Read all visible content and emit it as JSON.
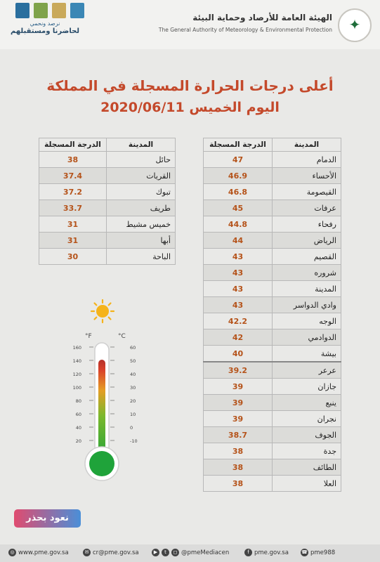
{
  "header": {
    "pme_arabic": "الهيئة العامة للأرصاد وحماية البيئة",
    "pme_english": "The General Authority of Meteorology & Environmental Protection",
    "slogan_top": "نرصد ونحمي",
    "slogan_bottom": "لحاضرنا ومستقبلهم"
  },
  "title": {
    "line1": "أعلى درجات الحرارة المسجلة في المملكة",
    "line2": "اليوم الخميس 2020/06/11"
  },
  "columns": {
    "city": "المدينة",
    "temp": "الدرجة المسجلة"
  },
  "right_table": [
    {
      "city": "الدمام",
      "temp": "47"
    },
    {
      "city": "الأحساء",
      "temp": "46.9"
    },
    {
      "city": "القيصومة",
      "temp": "46.8"
    },
    {
      "city": "عرفات",
      "temp": "45"
    },
    {
      "city": "رفحاء",
      "temp": "44.8"
    },
    {
      "city": "الرياض",
      "temp": "44"
    },
    {
      "city": "القصيم",
      "temp": "43"
    },
    {
      "city": "شروره",
      "temp": "43"
    },
    {
      "city": "المدينة",
      "temp": "43"
    },
    {
      "city": "وادي الدواسر",
      "temp": "43"
    },
    {
      "city": "الوجه",
      "temp": "42.2"
    },
    {
      "city": "الدوادمي",
      "temp": "42"
    },
    {
      "city": "بيشة",
      "temp": "40"
    },
    {
      "city": "عرعر",
      "temp": "39.2"
    },
    {
      "city": "جازان",
      "temp": "39"
    },
    {
      "city": "ينبع",
      "temp": "39"
    },
    {
      "city": "نجران",
      "temp": "39"
    },
    {
      "city": "الجوف",
      "temp": "38.7"
    },
    {
      "city": "جدة",
      "temp": "38"
    },
    {
      "city": "الطائف",
      "temp": "38"
    },
    {
      "city": "العلا",
      "temp": "38"
    }
  ],
  "left_table": [
    {
      "city": "حائل",
      "temp": "38"
    },
    {
      "city": "القريات",
      "temp": "37.4"
    },
    {
      "city": "تبوك",
      "temp": "37.2"
    },
    {
      "city": "طريف",
      "temp": "33.7"
    },
    {
      "city": "خميس مشيط",
      "temp": "31"
    },
    {
      "city": "أبها",
      "temp": "31"
    },
    {
      "city": "الباحة",
      "temp": "30"
    }
  ],
  "thermometer": {
    "unit_f": "°F",
    "unit_c": "°C",
    "f_ticks": [
      "160",
      "140",
      "120",
      "100",
      "80",
      "60",
      "40",
      "20"
    ],
    "c_ticks": [
      "60",
      "50",
      "40",
      "30",
      "20",
      "10",
      "0",
      "-10"
    ]
  },
  "campaign": "نعود بحذر",
  "footer": {
    "website": "www.pme.gov.sa",
    "email": "cr@pme.gov.sa",
    "twitter": "@pmeMediacen",
    "facebook": "pme.gov.sa",
    "phone": "pme988"
  },
  "colors": {
    "title": "#c4492b",
    "value": "#b5531a"
  }
}
